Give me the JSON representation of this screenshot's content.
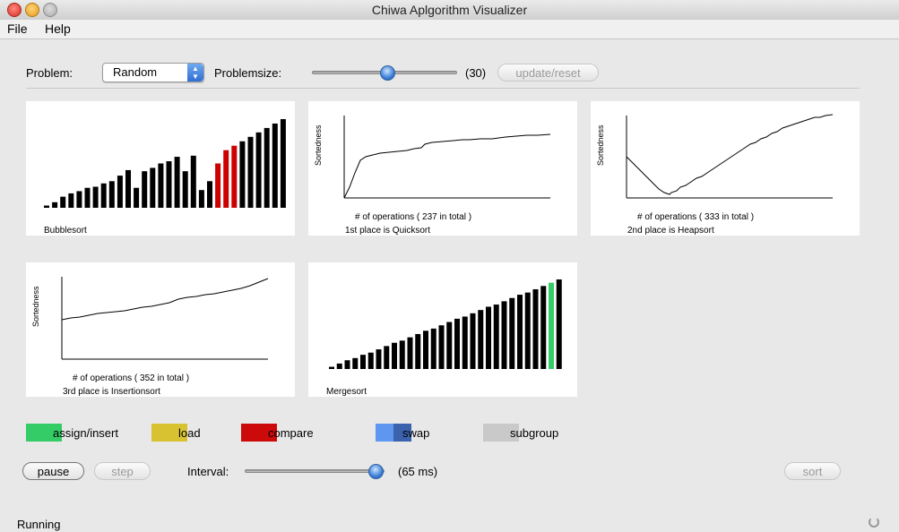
{
  "window": {
    "title": "Chiwa Aplgorithm Visualizer"
  },
  "menu": {
    "file": "File",
    "help": "Help"
  },
  "controls": {
    "problem_label": "Problem:",
    "problem_value": "Random",
    "problemsize_label": "Problemsize:",
    "problemsize_value": "(30)",
    "problemsize_fraction": 0.52,
    "update_reset": "update/reset"
  },
  "panels": {
    "bubble": {
      "name": "Bubblesort",
      "values": [
        2,
        5,
        10,
        13,
        15,
        18,
        19,
        22,
        24,
        29,
        34,
        18,
        33,
        36,
        40,
        42,
        46,
        33,
        47,
        16,
        24,
        40,
        52,
        56,
        60,
        64,
        68,
        72,
        76,
        80
      ],
      "highlight": {
        "indices": [
          21,
          22,
          23
        ],
        "color": "#cc0000"
      }
    },
    "quick": {
      "ylabel": "Sortedness",
      "ops_label": "# of operations ( 237 in total )",
      "place_label": "1st place is Quicksort"
    },
    "heap": {
      "ylabel": "Sortedness",
      "ops_label": "# of operations ( 333 in total )",
      "place_label": "2nd place is Heapsort"
    },
    "insertion": {
      "ylabel": "Sortedness",
      "ops_label": "# of operations ( 352 in total )",
      "place_label": "3rd place is Insertionsort"
    },
    "merge": {
      "name": "Mergesort",
      "values": [
        2,
        5,
        8,
        10,
        13,
        15,
        18,
        21,
        24,
        26,
        29,
        32,
        35,
        37,
        40,
        43,
        46,
        48,
        51,
        54,
        57,
        59,
        62,
        65,
        68,
        70,
        73,
        76,
        79,
        82
      ],
      "highlight": {
        "indices": [
          28
        ],
        "color": "#33cc66"
      }
    }
  },
  "legend": [
    {
      "label": "assign/insert",
      "colors": [
        "#33cc66"
      ]
    },
    {
      "label": "load",
      "colors": [
        "#d8c232"
      ]
    },
    {
      "label": "compare",
      "colors": [
        "#cc0a0a"
      ]
    },
    {
      "label": "swap",
      "colors": [
        "#5f97f0",
        "#3a62ad"
      ]
    },
    {
      "label": "subgroup",
      "colors": [
        "#c9c9c9"
      ]
    }
  ],
  "bottom": {
    "pause": "pause",
    "step": "step",
    "interval_label": "Interval:",
    "interval_value": "(65 ms)",
    "interval_fraction": 0.98,
    "sort": "sort"
  },
  "status": "Running",
  "colors": {
    "bar": "#000000",
    "line": "#000000"
  }
}
